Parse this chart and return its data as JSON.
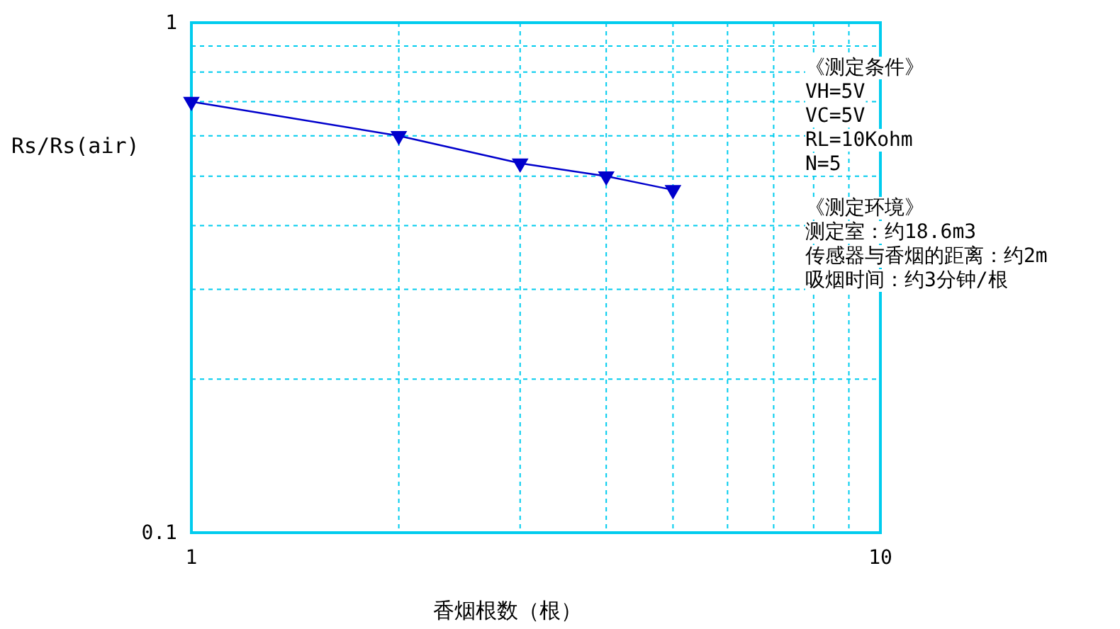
{
  "chart_data": {
    "type": "line",
    "xlabel": "香烟根数（根）",
    "ylabel": "Rs/Rs(air)",
    "log": "xy",
    "grid": true,
    "marker": "triangle",
    "line_style": "solid",
    "x": [
      1,
      2,
      3,
      4,
      5
    ],
    "series": [
      {
        "color": "#0000cc",
        "values": [
          0.7,
          0.6,
          0.53,
          0.5,
          0.47
        ]
      }
    ],
    "xlim": [
      1,
      10
    ],
    "ylim": [
      0.1,
      1
    ],
    "xticks": [
      1,
      {
        "value": 2,
        "label": null
      },
      {
        "value": 3,
        "label": null
      },
      {
        "value": 4,
        "label": null
      },
      {
        "value": 5,
        "label": null
      },
      {
        "value": 6,
        "label": null
      },
      {
        "value": 7,
        "label": null
      },
      {
        "value": 8,
        "label": null
      },
      {
        "value": 9,
        "label": null
      },
      10
    ],
    "yticks": [
      0.1,
      {
        "value": 0.2,
        "label": null
      },
      {
        "value": 0.3,
        "label": null
      },
      {
        "value": 0.4,
        "label": null
      },
      {
        "value": 0.5,
        "label": null
      },
      {
        "value": 0.6,
        "label": null
      },
      {
        "value": 0.7,
        "label": null
      },
      {
        "value": 0.8,
        "label": null
      },
      {
        "value": 0.9,
        "label": null
      },
      1
    ],
    "annotations": [
      "《测定条件》",
      "VH=5V",
      "VC=5V",
      "RL=10Kohm",
      "N=5",
      "《测定环境》",
      "测定室：约18.6m3",
      "传感器与香烟的距离：约2m",
      "吸烟时间：约3分钟/根"
    ]
  }
}
